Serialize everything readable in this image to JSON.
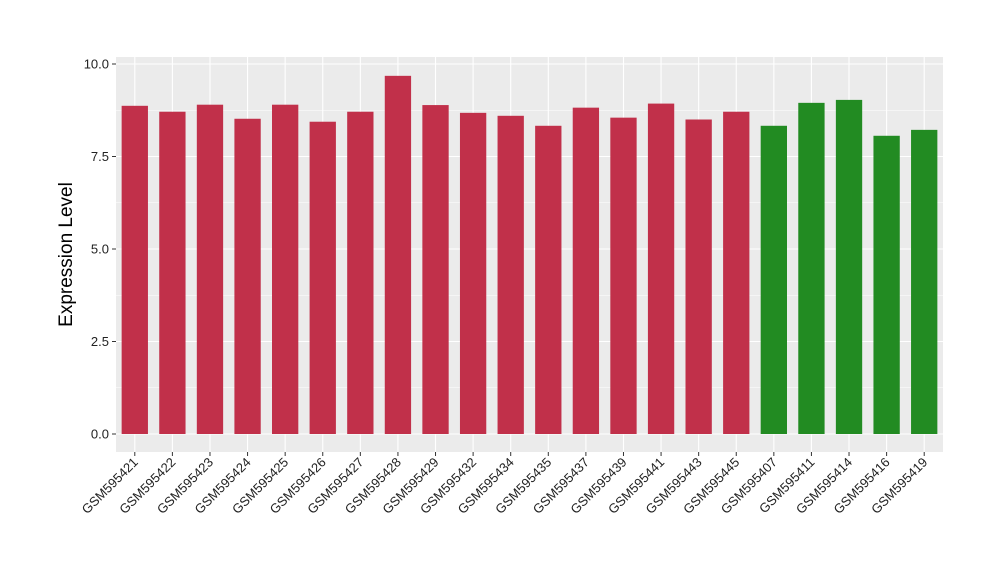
{
  "chart_data": {
    "type": "bar",
    "title": "",
    "xlabel": "",
    "ylabel": "Expression Level",
    "ylim": [
      0,
      10.0
    ],
    "yticks": [
      0.0,
      2.5,
      5.0,
      7.5,
      10.0
    ],
    "ytick_labels": [
      "0.0",
      "2.5",
      "5.0",
      "7.5",
      "10.0"
    ],
    "grid": true,
    "legend": "none",
    "panel_background": "#ebebeb",
    "grid_color": "#ffffff",
    "categories": [
      "GSM595421",
      "GSM595422",
      "GSM595423",
      "GSM595424",
      "GSM595425",
      "GSM595426",
      "GSM595427",
      "GSM595428",
      "GSM595429",
      "GSM595432",
      "GSM595434",
      "GSM595435",
      "GSM595437",
      "GSM595439",
      "GSM595441",
      "GSM595443",
      "GSM595445",
      "GSM595407",
      "GSM595411",
      "GSM595414",
      "GSM595416",
      "GSM595419"
    ],
    "values": [
      8.87,
      8.71,
      8.9,
      8.52,
      8.9,
      8.44,
      8.71,
      9.68,
      8.89,
      8.68,
      8.6,
      8.33,
      8.82,
      8.55,
      8.93,
      8.5,
      8.71,
      8.33,
      8.95,
      9.03,
      8.06,
      8.22
    ],
    "colors": [
      "#c1304a",
      "#c1304a",
      "#c1304a",
      "#c1304a",
      "#c1304a",
      "#c1304a",
      "#c1304a",
      "#c1304a",
      "#c1304a",
      "#c1304a",
      "#c1304a",
      "#c1304a",
      "#c1304a",
      "#c1304a",
      "#c1304a",
      "#c1304a",
      "#c1304a",
      "#228b22",
      "#228b22",
      "#228b22",
      "#228b22",
      "#228b22"
    ]
  }
}
